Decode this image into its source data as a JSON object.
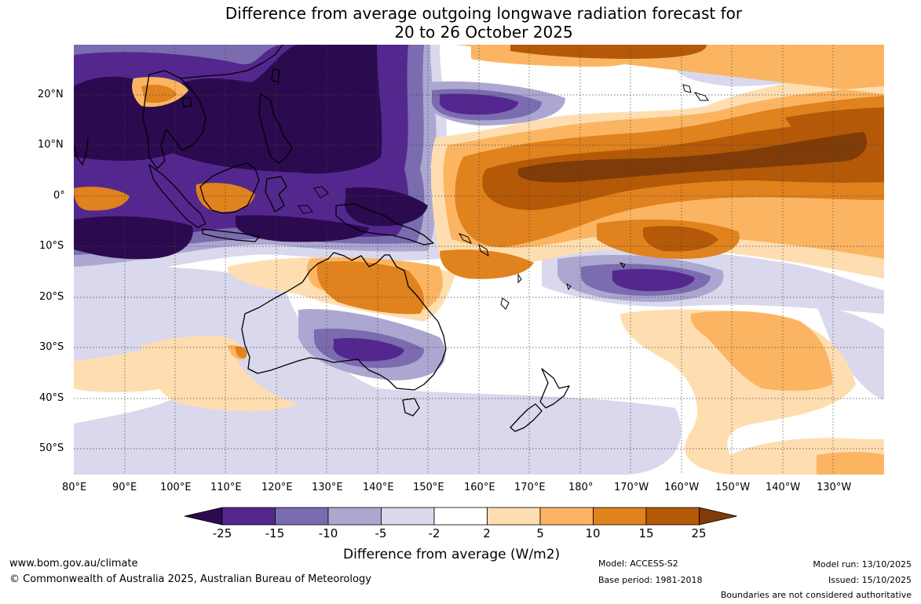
{
  "title": {
    "line1": "Difference from average outgoing longwave radiation forecast for",
    "line2": "20 to 26 October 2025"
  },
  "map": {
    "lat_labels": [
      "20°N",
      "10°N",
      "0°",
      "10°S",
      "20°S",
      "30°S",
      "40°S",
      "50°S"
    ],
    "lon_labels": [
      "80°E",
      "90°E",
      "100°E",
      "110°E",
      "120°E",
      "130°E",
      "140°E",
      "150°E",
      "160°E",
      "170°E",
      "180°",
      "170°W",
      "160°W",
      "150°W",
      "140°W",
      "130°W"
    ]
  },
  "colorbar": {
    "ticks": [
      "-25",
      "-15",
      "-10",
      "-5",
      "-2",
      "2",
      "5",
      "10",
      "15",
      "25"
    ],
    "colors": [
      "#2b0a4f",
      "#54278f",
      "#7b6baf",
      "#aca7d1",
      "#d9d8ec",
      "#ffffff",
      "#fedeb0",
      "#fbb562",
      "#e0821d",
      "#b35907",
      "#7f3b08"
    ],
    "title": "Difference from average (W/m2)"
  },
  "footer": {
    "website": "www.bom.gov.au/climate",
    "copyright": "© Commonwealth of Australia 2025, Australian Bureau of Meteorology",
    "model": "Model: ACCESS-S2",
    "base_period": "Base period: 1981-2018",
    "model_run": "Model run: 13/10/2025",
    "issued": "Issued: 15/10/2025",
    "disclaimer": "Boundaries are not considered authoritative"
  }
}
